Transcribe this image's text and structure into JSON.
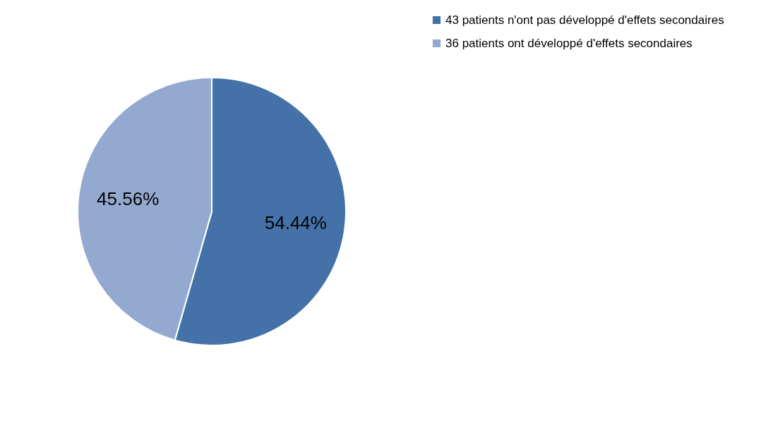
{
  "chart_data": {
    "type": "pie",
    "categories": [
      "43 patients n'ont pas développé d'effets secondaires",
      "36 patients ont développé d'effets secondaires"
    ],
    "values": [
      54.44,
      45.56
    ],
    "colors": [
      "#4472a8",
      "#93a9cf"
    ],
    "value_labels": [
      "54.44%",
      "45.56%"
    ],
    "legend": "right"
  }
}
